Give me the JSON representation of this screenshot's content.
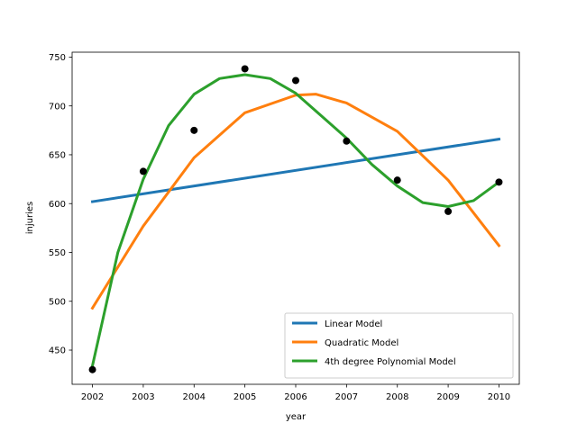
{
  "chart_data": {
    "type": "scatter",
    "title": "",
    "xlabel": "year",
    "ylabel": "injuries",
    "xlim": [
      2001.6,
      2010.4
    ],
    "ylim": [
      415,
      755
    ],
    "xticks": [
      2002,
      2003,
      2004,
      2005,
      2006,
      2007,
      2008,
      2009,
      2010
    ],
    "yticks": [
      450,
      500,
      550,
      600,
      650,
      700,
      750
    ],
    "grid": false,
    "legend_position": "lower-right",
    "points": {
      "color": "#000000",
      "x": [
        2002,
        2003,
        2004,
        2005,
        2006,
        2007,
        2008,
        2009,
        2010
      ],
      "y": [
        430,
        633,
        675,
        738,
        726,
        664,
        624,
        592,
        622
      ]
    },
    "series": [
      {
        "name": "Linear Model",
        "color": "#1f77b4",
        "x": [
          2002,
          2010
        ],
        "y": [
          602,
          666
        ]
      },
      {
        "name": "Quadratic Model",
        "color": "#ff7f0e",
        "x": [
          2002,
          2003,
          2004,
          2005,
          2006,
          2006.4,
          2007,
          2008,
          2009,
          2010
        ],
        "y": [
          493,
          577,
          647,
          693,
          711,
          712,
          703,
          674,
          624,
          557
        ]
      },
      {
        "name": "4th degree Polynomial Model",
        "color": "#2ca02c",
        "x": [
          2002,
          2002.5,
          2003,
          2003.5,
          2004,
          2004.5,
          2005,
          2005.5,
          2006,
          2006.5,
          2007,
          2007.5,
          2008,
          2008.5,
          2009,
          2009.5,
          2010
        ],
        "y": [
          434,
          550,
          625,
          680,
          712,
          728,
          732,
          728,
          713,
          690,
          667,
          640,
          618,
          601,
          597,
          603,
          622
        ]
      }
    ]
  }
}
